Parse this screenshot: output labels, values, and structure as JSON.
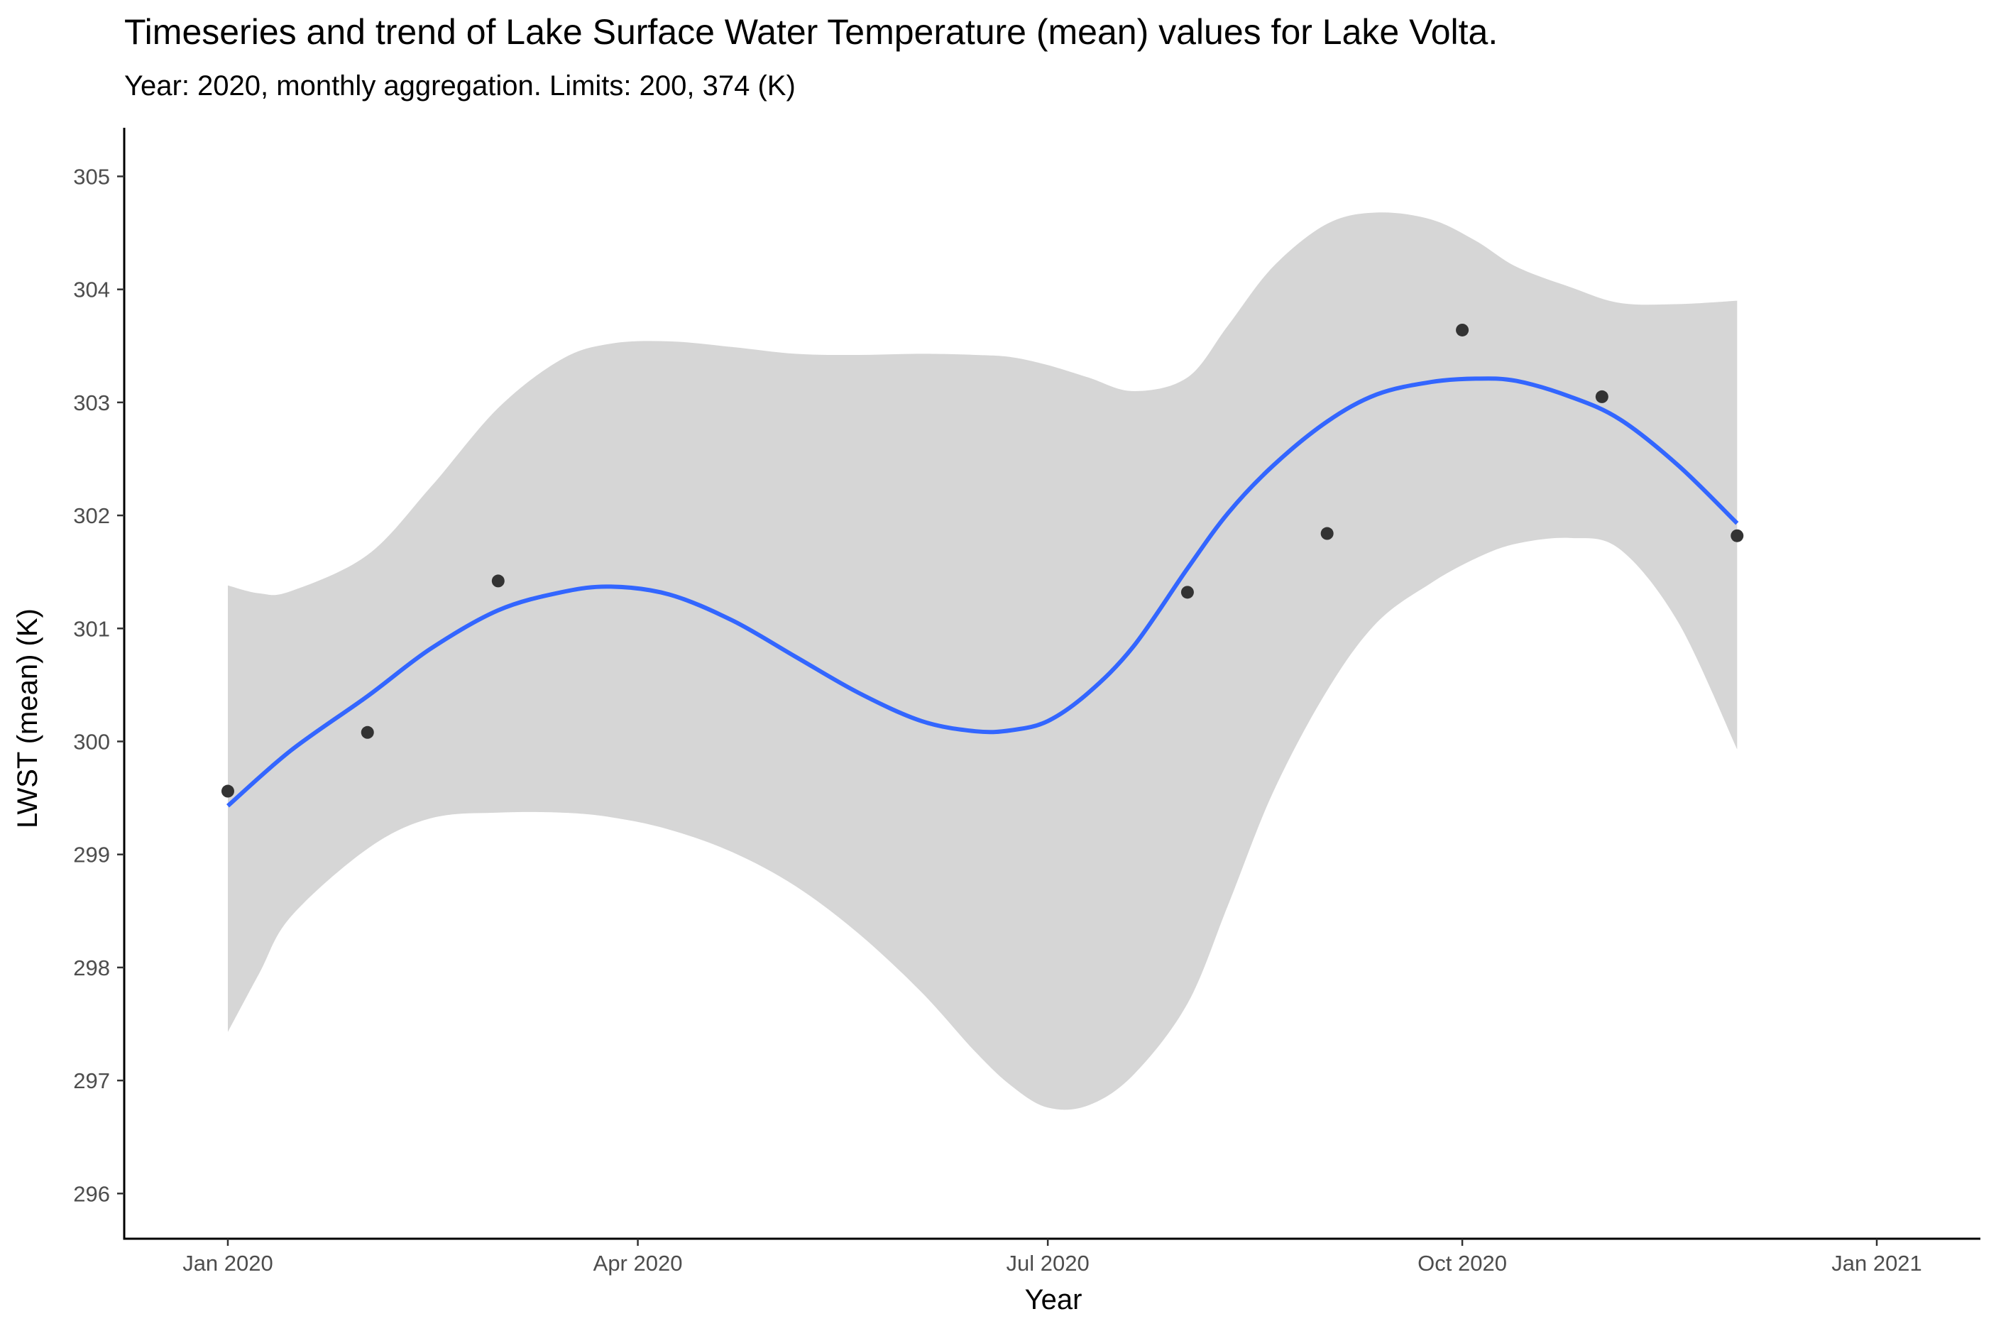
{
  "chart_data": {
    "type": "line",
    "title": "Timeseries and trend of Lake Surface Water Temperature (mean) values for Lake Volta.",
    "subtitle": "Year: 2020, monthly aggregation. Limits: 200, 374 (K)",
    "xlabel": "Year",
    "ylabel": "LWST (mean) (K)",
    "xlim": [
      "2019-12-09",
      "2021-01-24"
    ],
    "ylim": [
      295.6,
      305.43
    ],
    "x_ticks": [
      {
        "date": "2020-01-01",
        "label": "Jan 2020"
      },
      {
        "date": "2020-04-01",
        "label": "Apr 2020"
      },
      {
        "date": "2020-07-01",
        "label": "Jul 2020"
      },
      {
        "date": "2020-10-01",
        "label": "Oct 2020"
      },
      {
        "date": "2021-01-01",
        "label": "Jan 2021"
      }
    ],
    "y_ticks": [
      296,
      297,
      298,
      299,
      300,
      301,
      302,
      303,
      304,
      305
    ],
    "grid": false,
    "legend": "none",
    "series": [
      {
        "kind": "points",
        "x": [
          "2020-01-01",
          "2020-02-01",
          "2020-03-01",
          "2020-08-01",
          "2020-09-01",
          "2020-10-01",
          "2020-11-01",
          "2020-12-01"
        ],
        "y": [
          299.56,
          300.08,
          301.42,
          301.32,
          301.84,
          303.64,
          303.05,
          301.82
        ],
        "color": "#333333"
      },
      {
        "kind": "trend",
        "x": [
          "2020-01-01",
          "2020-01-15",
          "2020-02-01",
          "2020-02-15",
          "2020-03-01",
          "2020-03-15",
          "2020-03-26",
          "2020-04-08",
          "2020-04-22",
          "2020-05-06",
          "2020-05-20",
          "2020-06-03",
          "2020-06-15",
          "2020-06-23",
          "2020-07-01",
          "2020-07-10",
          "2020-07-20",
          "2020-08-01",
          "2020-08-10",
          "2020-08-20",
          "2020-09-01",
          "2020-09-12",
          "2020-09-24",
          "2020-10-04",
          "2020-10-13",
          "2020-10-25",
          "2020-11-05",
          "2020-11-18",
          "2020-12-01"
        ],
        "y": [
          299.43,
          299.92,
          300.4,
          300.82,
          301.16,
          301.32,
          301.37,
          301.3,
          301.07,
          300.75,
          300.43,
          300.18,
          300.09,
          300.1,
          300.18,
          300.43,
          300.84,
          301.53,
          302.02,
          302.44,
          302.83,
          303.07,
          303.18,
          303.21,
          303.19,
          303.05,
          302.85,
          302.44,
          301.93
        ],
        "color": "#3366ff"
      },
      {
        "kind": "confidence-band",
        "x": [
          "2020-01-01",
          "2020-01-08",
          "2020-01-15",
          "2020-02-01",
          "2020-02-15",
          "2020-03-01",
          "2020-03-15",
          "2020-03-26",
          "2020-04-08",
          "2020-04-22",
          "2020-05-06",
          "2020-05-20",
          "2020-06-03",
          "2020-06-15",
          "2020-06-23",
          "2020-07-01",
          "2020-07-10",
          "2020-07-20",
          "2020-08-01",
          "2020-08-10",
          "2020-08-20",
          "2020-09-01",
          "2020-09-12",
          "2020-09-24",
          "2020-10-04",
          "2020-10-13",
          "2020-10-25",
          "2020-11-05",
          "2020-11-18",
          "2020-12-01"
        ],
        "upper": [
          301.38,
          301.31,
          301.33,
          301.65,
          302.25,
          302.95,
          303.38,
          303.52,
          303.54,
          303.49,
          303.43,
          303.42,
          303.43,
          303.42,
          303.4,
          303.33,
          303.22,
          303.1,
          303.22,
          303.68,
          304.2,
          304.58,
          304.68,
          304.62,
          304.43,
          304.2,
          304.02,
          303.88,
          303.87,
          303.9
        ],
        "lower": [
          297.43,
          297.95,
          298.45,
          299.05,
          299.32,
          299.37,
          299.37,
          299.33,
          299.22,
          299.02,
          298.72,
          298.3,
          297.78,
          297.25,
          296.95,
          296.76,
          296.78,
          297.05,
          297.68,
          298.55,
          299.55,
          300.45,
          301.05,
          301.4,
          301.62,
          301.75,
          301.8,
          301.7,
          301.05,
          299.93
        ],
        "color": "#d6d6d6"
      }
    ]
  }
}
